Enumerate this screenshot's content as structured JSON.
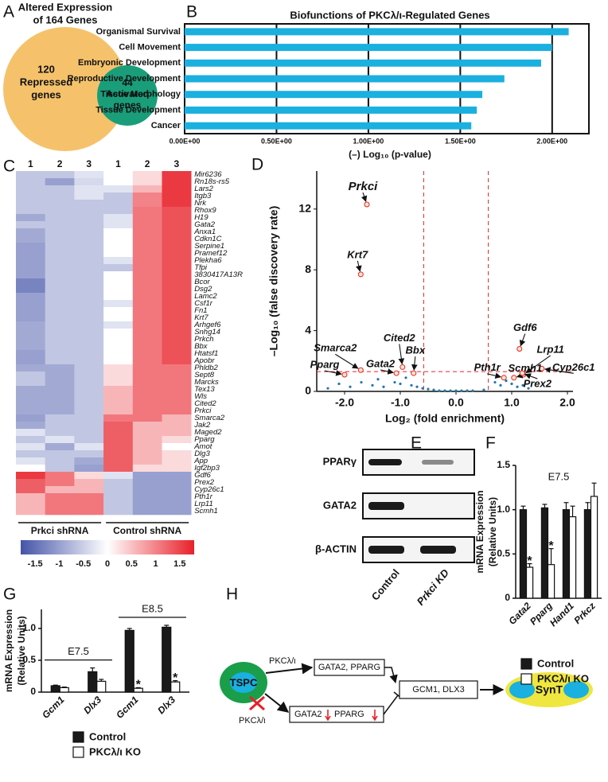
{
  "panel_labels": [
    "A",
    "B",
    "C",
    "D",
    "E",
    "F",
    "G",
    "H"
  ],
  "venn": {
    "title": [
      "Altered Expression",
      "of 164 Genes"
    ],
    "outer": {
      "lines": [
        "120",
        "Repressed",
        "genes"
      ],
      "color": "#f5c26b"
    },
    "inner": {
      "lines": [
        "44",
        "Activated",
        "genes"
      ],
      "color": "#1a9e7a"
    }
  },
  "chart_data": [
    {
      "type": "bar",
      "orientation": "horizontal",
      "title": "Biofunctions of PKCλ/ι-Regulated Genes",
      "x_label": "(–) Log₁₀ (p-value)",
      "categories": [
        "Organismal Survival",
        "Cell Movement",
        "Embryonic Development",
        "Reproductive Development",
        "Tissue Morphology",
        "Tissue Development",
        "Cancer"
      ],
      "values": [
        2.09,
        2.0,
        1.94,
        1.74,
        1.62,
        1.59,
        1.56
      ],
      "color": "#1ab0e0",
      "xlim": [
        0,
        2.2
      ],
      "xticks": [
        {
          "value": 0,
          "label": "0.00E+00"
        },
        {
          "value": 0.5,
          "label": "0.50E+00"
        },
        {
          "value": 1,
          "label": "1.00E+00"
        },
        {
          "value": 1.5,
          "label": "1.50E+00"
        },
        {
          "value": 2,
          "label": "2.00E+00"
        }
      ],
      "grid": true
    },
    {
      "type": "heatmap",
      "column_labels": [
        "1",
        "2",
        "3",
        "1",
        "2",
        "3"
      ],
      "groups": [
        "Prkci shRNA",
        "Control shRNA"
      ],
      "rows": [
        "Mir6236",
        "Rn18s-rs5",
        "Lars2",
        "Itgb3",
        "Nrk",
        "Rhox9",
        "H19",
        "Gata2",
        "Anxa1",
        "Cdkn1C",
        "Serpine1",
        "Pramef12",
        "Plekha6",
        "Tfpi",
        "3830417A13R",
        "Bcor",
        "Dsg2",
        "Lamc2",
        "Csf1r",
        "Fn1",
        "Krt7",
        "Arhgef6",
        "Snhg14",
        "Prkch",
        "Bbx",
        "Htatsf1",
        "Apobr",
        "Phldb2",
        "Sept8",
        "Marcks",
        "Tex13",
        "Wls",
        "Cited2",
        "Prkci",
        "Smarca2",
        "Jak2",
        "Maged2",
        "Pparg",
        "Amot",
        "Dlg3",
        "App",
        "Igf2bp3",
        "Gdf6",
        "Prex2",
        "Cyp26c1",
        "Pth1r",
        "Lrp11",
        "Scmh1"
      ],
      "highlight_rows": [
        7,
        33,
        37
      ],
      "highlight_color": "#e8202a",
      "values": [
        [
          -0.6,
          -0.6,
          -0.3,
          0,
          0.3,
          1.6
        ],
        [
          -0.6,
          -1.0,
          -0.4,
          0,
          0.3,
          1.6
        ],
        [
          -0.6,
          -0.6,
          -0.3,
          -0.3,
          0.6,
          1.6
        ],
        [
          -0.6,
          -0.6,
          -0.3,
          -0.6,
          1.0,
          1.6
        ],
        [
          -0.6,
          -0.6,
          -0.6,
          -0.6,
          1.0,
          1.6
        ],
        [
          -0.6,
          -0.6,
          -0.6,
          -0.6,
          1.1,
          1.4
        ],
        [
          -0.9,
          -0.6,
          -0.6,
          -0.3,
          1.1,
          1.4
        ],
        [
          -0.6,
          -0.6,
          -0.6,
          -0.3,
          1.1,
          1.4
        ],
        [
          -0.9,
          -0.6,
          -0.6,
          0,
          1.1,
          1.4
        ],
        [
          -0.9,
          -0.6,
          -0.6,
          0,
          1.1,
          1.4
        ],
        [
          -1.0,
          -0.6,
          -0.6,
          0,
          1.1,
          1.4
        ],
        [
          -1.0,
          -0.6,
          -0.6,
          0,
          1.1,
          1.4
        ],
        [
          -1.0,
          -0.6,
          -0.6,
          -0.3,
          1.1,
          1.4
        ],
        [
          -1.0,
          -0.6,
          -0.6,
          -0.6,
          1.1,
          1.4
        ],
        [
          -1.0,
          -0.6,
          -0.6,
          0,
          1.1,
          1.4
        ],
        [
          -1.3,
          -0.6,
          -0.6,
          0,
          1.1,
          1.4
        ],
        [
          -1.3,
          -0.6,
          -0.6,
          0,
          1.1,
          1.4
        ],
        [
          -1.0,
          -0.6,
          -0.6,
          0,
          1.1,
          1.4
        ],
        [
          -1.0,
          -0.6,
          -0.6,
          -0.3,
          1.1,
          1.4
        ],
        [
          -1.0,
          -0.6,
          -0.6,
          0,
          1.1,
          1.4
        ],
        [
          -1.0,
          -0.6,
          -0.6,
          0,
          1.1,
          1.4
        ],
        [
          -0.9,
          -0.6,
          -0.6,
          -0.3,
          1.1,
          1.4
        ],
        [
          -0.9,
          -0.6,
          -0.6,
          0,
          1.1,
          1.4
        ],
        [
          -0.9,
          -0.6,
          -0.6,
          0,
          1.1,
          1.4
        ],
        [
          -0.9,
          -0.6,
          -0.6,
          0,
          1.1,
          1.4
        ],
        [
          -1.0,
          -0.6,
          -0.6,
          0,
          1.1,
          1.4
        ],
        [
          -1.0,
          -0.6,
          -0.6,
          0,
          1.1,
          1.4
        ],
        [
          -0.9,
          -0.9,
          -0.6,
          0.3,
          1.1,
          1.1
        ],
        [
          -0.6,
          -0.9,
          -0.6,
          0.3,
          1.1,
          1.1
        ],
        [
          -0.6,
          -0.9,
          -0.6,
          0.3,
          1.1,
          1.1
        ],
        [
          -0.9,
          -0.9,
          -0.6,
          0.6,
          1.1,
          1.1
        ],
        [
          -0.9,
          -0.9,
          -0.6,
          0.6,
          1.1,
          1.1
        ],
        [
          -0.9,
          -0.9,
          -0.6,
          0.6,
          1.1,
          1.1
        ],
        [
          -0.9,
          -0.9,
          -0.6,
          0.6,
          1.1,
          1.1
        ],
        [
          -1.0,
          -0.6,
          -0.6,
          1.1,
          1.1,
          0.6
        ],
        [
          -0.9,
          -0.6,
          -0.6,
          1.3,
          0.6,
          0.6
        ],
        [
          -0.3,
          -0.6,
          -0.6,
          1.3,
          0.6,
          0.6
        ],
        [
          -0.6,
          -0.3,
          -0.6,
          1.3,
          0.6,
          0.3
        ],
        [
          -0.3,
          -0.9,
          -0.3,
          1.3,
          0.6,
          0
        ],
        [
          -0.6,
          -0.6,
          -0.6,
          1.3,
          0.6,
          0.3
        ],
        [
          -0.3,
          -0.6,
          -0.9,
          1.3,
          0.6,
          0.3
        ],
        [
          0,
          -0.6,
          -1.0,
          1.3,
          0.3,
          0.3
        ],
        [
          1.6,
          1.1,
          0.3,
          -0.3,
          -1.0,
          -1.0
        ],
        [
          1.3,
          1.1,
          0.6,
          -0.6,
          -1.0,
          -1.0
        ],
        [
          1.3,
          0.6,
          0.6,
          -0.6,
          -1.0,
          -1.0
        ],
        [
          0.6,
          1.1,
          1.1,
          -0.6,
          -1.0,
          -1.0
        ],
        [
          0.6,
          1.1,
          1.1,
          -0.6,
          -1.0,
          -1.0
        ],
        [
          0.6,
          1.1,
          1.1,
          -0.6,
          -1.0,
          -1.0
        ]
      ],
      "clim": [
        -1.8,
        1.8
      ],
      "colors": [
        "#4454a8",
        "#ffffff",
        "#e8202a"
      ],
      "colorbar_ticks": [
        -1.5,
        -1,
        -0.5,
        0,
        0.5,
        1,
        1.5
      ]
    },
    {
      "type": "scatter",
      "x_label": "Log₂ (fold enrichment)",
      "y_label": "–Log₁₀ (false discovery rate)",
      "xlim": [
        -2.5,
        2.1
      ],
      "ylim": [
        0,
        14.5
      ],
      "xticks": [
        {
          "value": -2,
          "label": "-2.0"
        },
        {
          "value": -1,
          "label": "-1.0"
        },
        {
          "value": 0,
          "label": "0.0"
        },
        {
          "value": 1,
          "label": "1.0"
        },
        {
          "value": 2,
          "label": "2.0"
        }
      ],
      "yticks": [
        0,
        4,
        8,
        12
      ],
      "thresholds": {
        "x": [
          -0.58,
          0.58
        ],
        "y": 1.3,
        "color": "#e8202a"
      },
      "background": {
        "color": "#1f77b4",
        "x": [
          -2.3,
          -2.1,
          -1.9,
          -1.7,
          -1.5,
          -1.4,
          -1.3,
          -1.1,
          -1.0,
          -0.9,
          -0.8,
          -0.7,
          -0.6,
          -0.5,
          -0.4,
          -0.3,
          -0.2,
          -0.1,
          0,
          0.1,
          0.2,
          0.3,
          0.5,
          0.7,
          0.8,
          0.9,
          1.0,
          1.1,
          1.2,
          1.3
        ],
        "y": [
          0.2,
          0.5,
          0.3,
          0.6,
          0.4,
          0.8,
          0.3,
          0.6,
          0.5,
          0.9,
          0.4,
          0.3,
          0.2,
          0.15,
          0.1,
          0.05,
          0.05,
          0.05,
          0.05,
          0.05,
          0.05,
          0.05,
          0.1,
          0.6,
          0.4,
          0.7,
          0.5,
          0.3,
          0.4,
          0.2
        ]
      },
      "labeled": {
        "color": "#e8202a",
        "fill": "#fbe7c8",
        "highlight_color": "#e8202a",
        "points": [
          {
            "label": "Prkci",
            "x": -1.6,
            "y": 12.3,
            "highlight": true
          },
          {
            "label": "Krt7",
            "x": -1.71,
            "y": 7.7,
            "highlight": false
          },
          {
            "label": "Smarca2",
            "x": -1.71,
            "y": 1.4,
            "highlight": false
          },
          {
            "label": "Pparg",
            "x": -2.0,
            "y": 1.1,
            "highlight": true
          },
          {
            "label": "Gata2",
            "x": -1.07,
            "y": 1.2,
            "highlight": true
          },
          {
            "label": "Cited2",
            "x": -0.96,
            "y": 1.6,
            "highlight": false
          },
          {
            "label": "Bbx",
            "x": -0.76,
            "y": 1.2,
            "highlight": false
          },
          {
            "label": "Gdf6",
            "x": 1.14,
            "y": 2.8,
            "highlight": false
          },
          {
            "label": "Lrp11",
            "x": 1.21,
            "y": 1.1,
            "highlight": false
          },
          {
            "label": "Cyp26c1",
            "x": 1.54,
            "y": 1.5,
            "highlight": false
          },
          {
            "label": "Pth1r",
            "x": 0.86,
            "y": 0.9,
            "highlight": false
          },
          {
            "label": "Scmh1",
            "x": 1.04,
            "y": 0.9,
            "highlight": false
          },
          {
            "label": "Prex2",
            "x": 1.19,
            "y": 1.2,
            "highlight": false
          }
        ]
      }
    },
    {
      "type": "bar",
      "title": "E7.5",
      "y_label": [
        "mRNA Expression",
        "(Relative Units)"
      ],
      "categories": [
        "Gata2",
        "Pparg",
        "Hand1",
        "Prkcz"
      ],
      "series": [
        {
          "name": "Control",
          "color": "#1a1a1a",
          "values": [
            1.0,
            1.02,
            1.0,
            1.0
          ],
          "errors": [
            0.04,
            0.04,
            0.08,
            0.08
          ]
        },
        {
          "name": "PKCλ/ι KO",
          "color": "#ffffff",
          "values": [
            0.35,
            0.38,
            0.92,
            1.15
          ],
          "errors": [
            0.04,
            0.18,
            0.12,
            0.15
          ],
          "markers": [
            "*",
            "*",
            null,
            null
          ]
        }
      ],
      "ylim": [
        0,
        1.5
      ],
      "yticks": [
        0,
        0.5,
        {
          "value": 1,
          "label": "1.0"
        },
        1.5
      ]
    },
    {
      "type": "bar",
      "group_labels": [
        "E7.5",
        "E8.5"
      ],
      "y_label": [
        "mRNA Expression",
        "(Relative Units)"
      ],
      "categories": [
        "Gcm1",
        "Dlx3",
        "Gcm1",
        "Dlx3"
      ],
      "series": [
        {
          "name": "Control",
          "color": "#1a1a1a",
          "values": [
            0.1,
            0.32,
            0.97,
            1.02
          ],
          "errors": [
            0.01,
            0.06,
            0.03,
            0.03
          ]
        },
        {
          "name": "PKCλ/ι KO",
          "color": "#ffffff",
          "values": [
            0.07,
            0.17,
            0.06,
            0.16
          ],
          "errors": [
            0.01,
            0.03,
            0.01,
            0.02
          ],
          "markers": [
            null,
            null,
            "*",
            "*"
          ]
        }
      ],
      "ylim": [
        0,
        1.3
      ],
      "yticks": [
        0,
        0.5,
        {
          "value": 1,
          "label": "1.0"
        }
      ]
    }
  ],
  "blot": {
    "rows": [
      "PPARγ",
      "GATA2",
      "β-ACTIN"
    ],
    "lanes": [
      "Control",
      "Prkci KD"
    ]
  },
  "diagram": {
    "stem_cell": "TSPC",
    "regulator": "PKCλ/ι",
    "targets": "GATA2, PPARG",
    "inhibited_regulator": "PKCλ/ι",
    "reduced_targets": [
      "GATA2",
      "PPARG"
    ],
    "effectors": "GCM1, DLX3",
    "outcome": "SynT"
  }
}
